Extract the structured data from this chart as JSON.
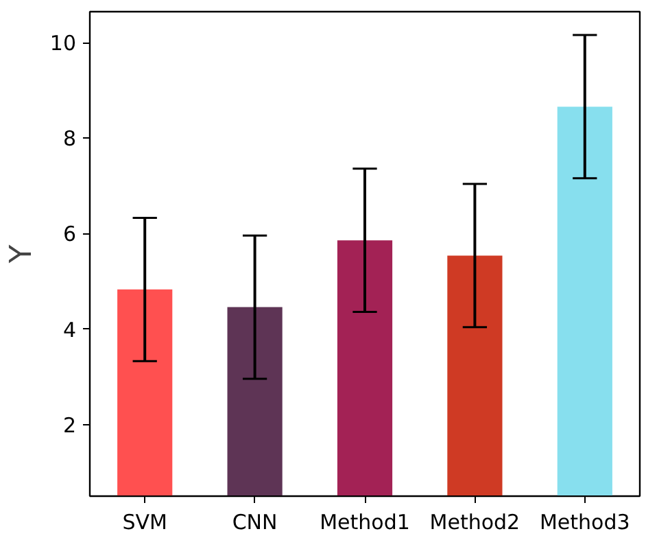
{
  "chart_data": {
    "type": "bar",
    "ylabel": "Y",
    "categories": [
      "SVM",
      "CNN",
      "Method1",
      "Method2",
      "Method3"
    ],
    "values": [
      4.83,
      4.46,
      5.86,
      5.54,
      8.66
    ],
    "colors": [
      "#ff5050",
      "#5e3455",
      "#a32255",
      "#cf3a24",
      "#87dfee"
    ],
    "errors": [
      1.5,
      1.5,
      1.5,
      1.5,
      1.5
    ],
    "ylim": [
      0.5,
      10.65
    ],
    "yticks": [
      2,
      4,
      6,
      8,
      10
    ],
    "grid": false
  }
}
